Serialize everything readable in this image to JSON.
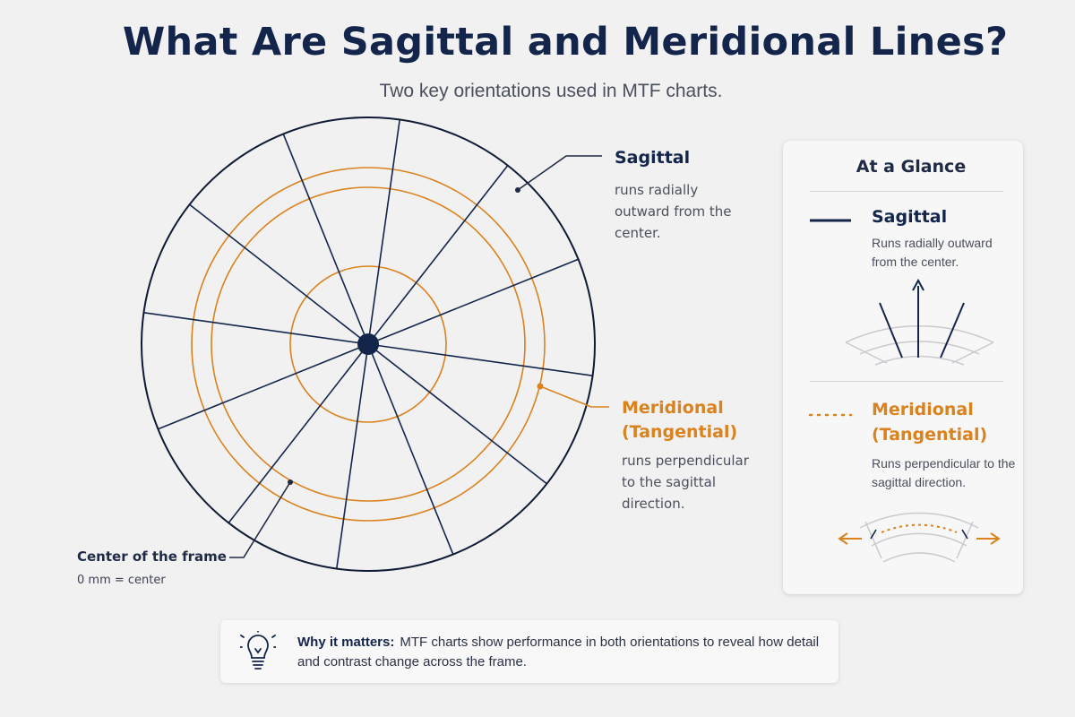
{
  "title": "What Are Sagittal and Meridional Lines?",
  "subtitle": "Two key orientations used in MTF charts.",
  "diagram": {
    "sagittal": {
      "heading": "Sagittal",
      "description": "runs radially outward from the center."
    },
    "meridional": {
      "heading": "Meridional (Tangential)",
      "description": "runs perpendicular to the sagittal direction."
    },
    "center": {
      "heading": "Center of the frame",
      "description": "0 mm = center"
    },
    "spoke_count": 12,
    "ring_count": 3
  },
  "panel": {
    "title": "At a Glance",
    "sagittal": {
      "heading": "Sagittal",
      "description": "Runs radially outward from the center."
    },
    "meridional": {
      "heading": "Meridional (Tangential)",
      "description": "Runs perpendicular to the sagittal direction."
    }
  },
  "callout": {
    "lead": "Why it matters:",
    "text": "MTF charts show performance in both orientations to reveal how detail and contrast change across the frame."
  },
  "colors": {
    "navy": "#13254a",
    "orange": "#d9821e",
    "grey": "#c9cacf"
  }
}
